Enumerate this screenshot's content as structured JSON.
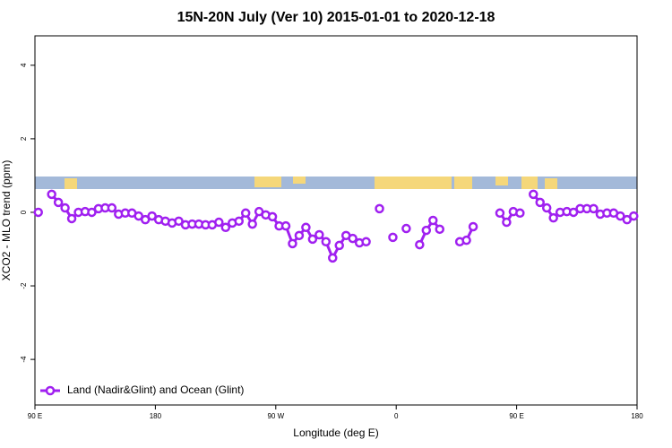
{
  "chart_data": {
    "type": "line",
    "title": "15N-20N July (Ver 10)   2015-01-01 to 2020-12-18",
    "x_label": "Longitude (deg E)",
    "y_label": "XCO2 - MLO trend (ppm)",
    "xlim": [
      90,
      540
    ],
    "ylim": [
      -5.24,
      4.8
    ],
    "xticks": [
      {
        "value": 90,
        "label": "90 E"
      },
      {
        "value": 180,
        "label": "180"
      },
      {
        "value": 270,
        "label": "90 W"
      },
      {
        "value": 360,
        "label": "0"
      },
      {
        "value": 450,
        "label": "90 E"
      },
      {
        "value": 540,
        "label": "180"
      }
    ],
    "yticks": [
      -4,
      -2,
      0,
      2,
      4
    ],
    "legend": "bottom-left",
    "x": [
      92.5,
      97.5,
      102.5,
      107.5,
      112.5,
      117.5,
      122.5,
      127.5,
      132.5,
      137.5,
      142.5,
      147.5,
      152.5,
      157.5,
      162.5,
      167.5,
      172.5,
      177.5,
      182.5,
      187.5,
      192.5,
      197.5,
      202.5,
      207.5,
      212.5,
      217.5,
      222.5,
      227.5,
      232.5,
      237.5,
      242.5,
      247.5,
      252.5,
      257.5,
      262.5,
      267.5,
      272.5,
      277.5,
      282.5,
      287.5,
      292.5,
      297.5,
      302.5,
      307.5,
      312.5,
      317.5,
      322.5,
      327.5,
      332.5,
      337.5,
      342.5,
      347.5,
      352.5,
      357.5,
      362.5,
      367.5,
      372.5,
      377.5,
      382.5,
      387.5,
      392.5,
      397.5,
      407.5,
      412.5,
      417.5,
      422.5,
      437.5,
      442.5,
      447.5,
      452.5,
      457.5,
      462.5,
      467.5,
      472.5,
      477.5,
      482.5,
      487.5,
      492.5,
      497.5,
      502.5,
      507.5,
      512.5,
      517.5,
      522.5,
      527.5,
      532.5,
      537.5
    ],
    "series": [
      {
        "name": "Land (Nadir&Glint) and Ocean (Glint)",
        "color": "#a020f0",
        "values": [
          0,
          null,
          0.49,
          0.27,
          0.12,
          -0.17,
          0,
          0.02,
          0,
          0.1,
          0.12,
          0.12,
          -0.05,
          -0.02,
          -0.02,
          -0.1,
          -0.2,
          -0.1,
          -0.2,
          -0.24,
          -0.29,
          -0.24,
          -0.34,
          -0.32,
          -0.32,
          -0.34,
          -0.34,
          -0.27,
          -0.41,
          -0.29,
          -0.24,
          -0.02,
          -0.32,
          0.02,
          -0.07,
          -0.12,
          -0.37,
          -0.37,
          -0.85,
          -0.63,
          -0.41,
          -0.73,
          -0.61,
          -0.8,
          -1.24,
          -0.9,
          -0.63,
          -0.71,
          -0.83,
          -0.8,
          null,
          0.1,
          null,
          -0.68,
          null,
          -0.44,
          null,
          -0.88,
          -0.49,
          -0.22,
          -0.46,
          null,
          -0.8,
          -0.76,
          -0.39,
          null,
          -0.02,
          -0.27,
          0.02,
          -0.02,
          null,
          0.49,
          0.27,
          0.12,
          -0.15,
          0,
          0.02,
          0,
          0.1,
          0.1,
          0.1,
          -0.05,
          -0.02,
          -0.02,
          -0.1,
          -0.2,
          -0.1
        ]
      }
    ]
  }
}
